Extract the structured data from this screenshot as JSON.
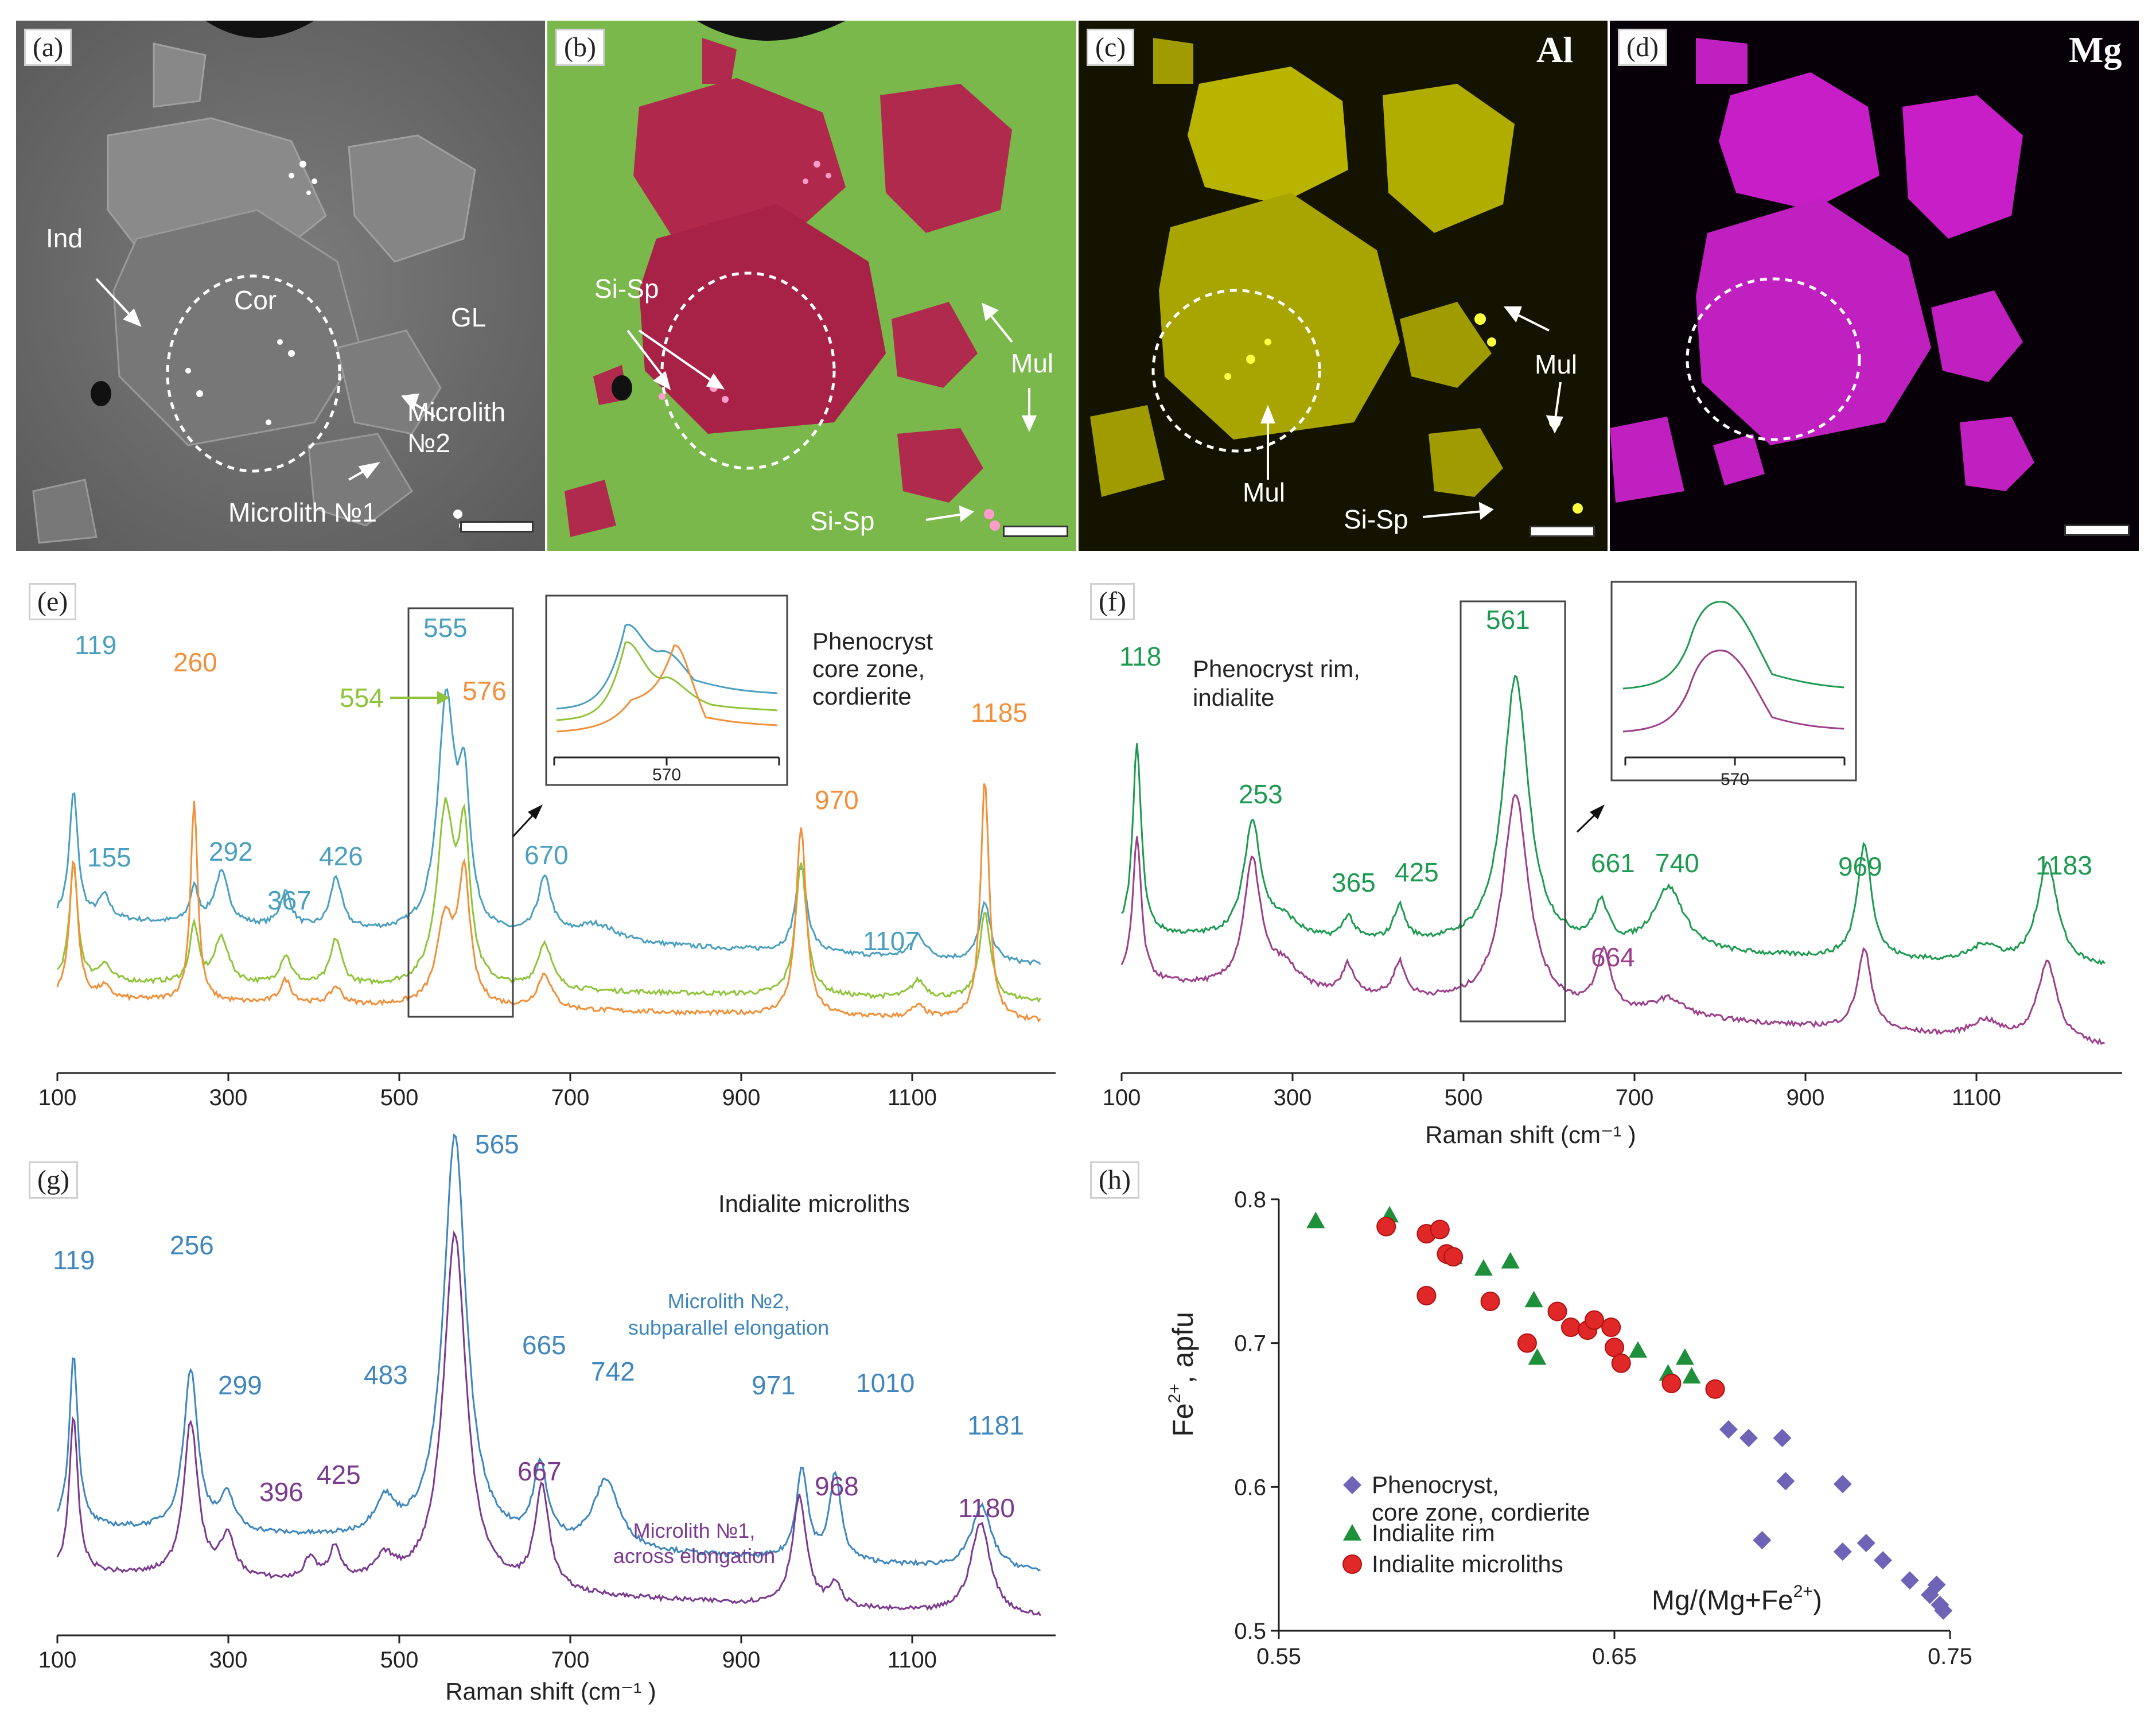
{
  "colors": {
    "teal": "#4a9fbf",
    "lime": "#8fc43a",
    "orange": "#f0903a",
    "green": "#1d9a50",
    "magenta_spec": "#9c3f8a",
    "blue_spec": "#3f86bd",
    "purple_spec": "#7a3a8e",
    "diamond": "#6f63b8",
    "triangle": "#1e8f3a",
    "circle": "#e02828"
  },
  "images": {
    "a": {
      "tag": "(a)",
      "ind": "Ind",
      "cor": "Cor",
      "gl": "GL",
      "microlith2": "Microlith №2",
      "microlith1": "Microlith №1"
    },
    "b": {
      "tag": "(b)",
      "sisp": "Si-Sp",
      "mul": "Mul",
      "sisp2": "Si-Sp"
    },
    "c": {
      "tag": "(c)",
      "element": "Al",
      "mul1": "Mul",
      "mul2": "Mul",
      "sisp": "Si-Sp"
    },
    "d": {
      "tag": "(d)",
      "element": "Mg"
    }
  },
  "spectra_e": {
    "tag": "(e)",
    "title": "Phenocryst\ncore zone,\ncordierite",
    "peaks": [
      "119",
      "155",
      "292",
      "367",
      "426",
      "555",
      "554",
      "576",
      "260",
      "670",
      "970",
      "1185",
      "1107"
    ],
    "inset_tick": "570",
    "x_ticks": [
      "100",
      "300",
      "500",
      "700",
      "900",
      "1100"
    ]
  },
  "spectra_f": {
    "tag": "(f)",
    "title": "Phenocryst rim,\nindialite",
    "peaks": [
      "118",
      "253",
      "365",
      "425",
      "561",
      "661",
      "740",
      "969",
      "1183",
      "664"
    ],
    "inset_tick": "570",
    "x_ticks": [
      "100",
      "300",
      "500",
      "700",
      "900",
      "1100"
    ],
    "xlabel": "Raman shift (cm⁻¹ )"
  },
  "spectra_g": {
    "tag": "(g)",
    "title": "Indialite microliths",
    "peaks_blue": [
      "119",
      "256",
      "299",
      "483",
      "565",
      "665",
      "742",
      "971",
      "1010",
      "1181"
    ],
    "peaks_purple": [
      "396",
      "425",
      "667",
      "968",
      "1180"
    ],
    "label_blue": "Microlith №2,\nsubparallel  elongation",
    "label_purple": "Microlith №1,\nacross elongation",
    "x_ticks": [
      "100",
      "300",
      "500",
      "700",
      "900",
      "1100"
    ],
    "xlabel": "Raman shift (cm⁻¹ )"
  },
  "chart_data": [
    {
      "type": "scatter",
      "title": "",
      "xlabel": "Mg/(Mg+Fe2+)",
      "ylabel": "Fe2+, apfu",
      "xlim": [
        0.55,
        0.75
      ],
      "ylim": [
        0.5,
        0.8
      ],
      "x_ticks": [
        "0.55",
        "0.65",
        "0.75"
      ],
      "y_ticks": [
        "0.5",
        "0.6",
        "0.7",
        "0.8"
      ],
      "tag": "(h)",
      "series": [
        {
          "name": "Phenocryst,\ncore zone, cordierite",
          "marker": "diamond",
          "x": [
            0.684,
            0.69,
            0.7,
            0.701,
            0.694,
            0.718,
            0.718,
            0.725,
            0.73,
            0.738,
            0.744,
            0.746,
            0.748,
            0.747
          ],
          "y": [
            0.64,
            0.634,
            0.634,
            0.604,
            0.563,
            0.602,
            0.555,
            0.561,
            0.549,
            0.535,
            0.525,
            0.532,
            0.514,
            0.518
          ]
        },
        {
          "name": "Indialite rim",
          "marker": "triangle",
          "x": [
            0.561,
            0.583,
            0.602,
            0.611,
            0.619,
            0.626,
            0.627,
            0.657,
            0.666,
            0.671,
            0.673
          ],
          "y": [
            0.785,
            0.789,
            0.76,
            0.752,
            0.757,
            0.73,
            0.69,
            0.695,
            0.679,
            0.69,
            0.677
          ]
        },
        {
          "name": "Indialite microliths",
          "marker": "circle",
          "x": [
            0.582,
            0.594,
            0.598,
            0.6,
            0.602,
            0.594,
            0.613,
            0.624,
            0.633,
            0.637,
            0.642,
            0.644,
            0.65,
            0.649,
            0.652,
            0.667,
            0.68
          ],
          "y": [
            0.781,
            0.776,
            0.779,
            0.762,
            0.76,
            0.733,
            0.729,
            0.7,
            0.722,
            0.711,
            0.709,
            0.716,
            0.697,
            0.711,
            0.686,
            0.672,
            0.668
          ]
        }
      ]
    }
  ]
}
